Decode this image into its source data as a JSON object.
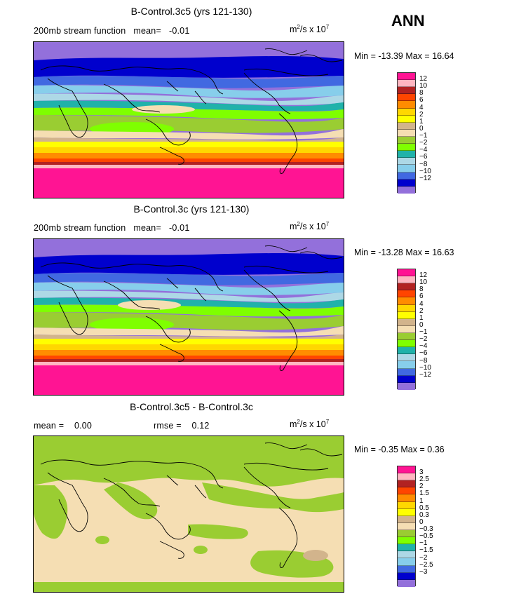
{
  "season": "ANN",
  "unit_text": "m",
  "unit_tail": "/s x 10",
  "unit_sup1": "2",
  "unit_sup2": "7",
  "panels": [
    {
      "title": "B-Control.3c5 (yrs 121-130)",
      "field_label": "200mb stream function",
      "mean_label": "mean=",
      "mean_value": "-0.01",
      "min_label": "Min =",
      "min_value": "-13.39",
      "max_label": "Max =",
      "max_value": "16.64"
    },
    {
      "title": "B-Control.3c (yrs 121-130)",
      "field_label": "200mb stream function",
      "mean_label": "mean=",
      "mean_value": "-0.01",
      "min_label": "Min =",
      "min_value": "-13.28",
      "max_label": "Max =",
      "max_value": "16.63"
    },
    {
      "title": "B-Control.3c5 - B-Control.3c",
      "mean_label": "mean =",
      "mean_value": "0.00",
      "rmse_label": "rmse =",
      "rmse_value": "0.12",
      "min_label": "Min =",
      "min_value": "-0.35",
      "max_label": "Max =",
      "max_value": "0.36"
    }
  ],
  "legend_colors": [
    "#ff1493",
    "#ffb6c1",
    "#b22222",
    "#ff4500",
    "#ff8c00",
    "#ffd700",
    "#ffff00",
    "#d2b48c",
    "#f5deb3",
    "#9acd32",
    "#7fff00",
    "#20b2aa",
    "#add8e6",
    "#87ceeb",
    "#4169e1",
    "#0000cd",
    "#9370db"
  ],
  "legend_full_labels": [
    "12",
    "10",
    "8",
    "6",
    "4",
    "2",
    "1",
    "0",
    "−1",
    "−2",
    "−4",
    "−6",
    "−8",
    "−10",
    "−12"
  ],
  "legend_diff_labels": [
    "3",
    "2.5",
    "2",
    "1.5",
    "1",
    "0.5",
    "0.3",
    "0",
    "−0.3",
    "−0.5",
    "−1",
    "−1.5",
    "−2",
    "−2.5",
    "−3"
  ],
  "colors": {
    "c_pink": "#ff1493",
    "c_lightpink": "#ffb6c1",
    "c_firebrick": "#b22222",
    "c_orangered": "#ff4500",
    "c_orange": "#ff8c00",
    "c_gold": "#ffd700",
    "c_yellow": "#ffff00",
    "c_tan": "#d2b48c",
    "c_wheat": "#f5deb3",
    "c_yellowgreen": "#9acd32",
    "c_chartreuse": "#7fff00",
    "c_teal": "#20b2aa",
    "c_lightblue": "#add8e6",
    "c_skyblue": "#87ceeb",
    "c_royalblue": "#4169e1",
    "c_mediumblue": "#0000cd",
    "c_purple": "#9370db"
  }
}
